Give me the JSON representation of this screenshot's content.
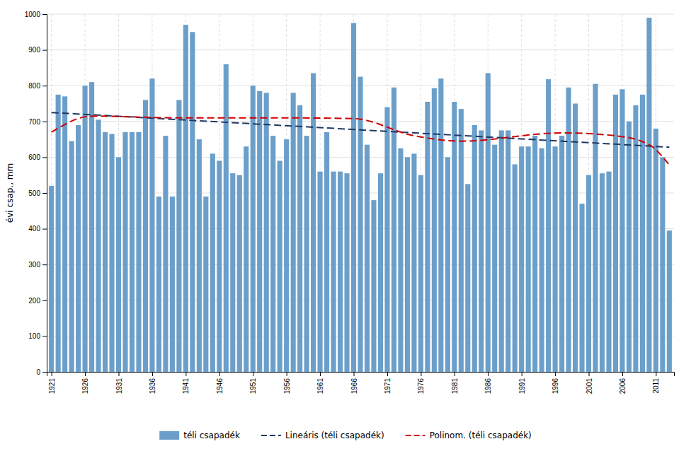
{
  "chart_data": {
    "type": "bar",
    "ylabel": "évi csap., mm",
    "x": [
      1921,
      1922,
      1923,
      1924,
      1925,
      1926,
      1927,
      1928,
      1929,
      1930,
      1931,
      1932,
      1933,
      1934,
      1935,
      1936,
      1937,
      1938,
      1939,
      1940,
      1941,
      1942,
      1943,
      1944,
      1945,
      1946,
      1947,
      1948,
      1949,
      1950,
      1951,
      1952,
      1953,
      1954,
      1955,
      1956,
      1957,
      1958,
      1959,
      1960,
      1961,
      1962,
      1963,
      1964,
      1965,
      1966,
      1967,
      1968,
      1969,
      1970,
      1971,
      1972,
      1973,
      1974,
      1975,
      1976,
      1977,
      1978,
      1979,
      1980,
      1981,
      1982,
      1983,
      1984,
      1985,
      1986,
      1987,
      1988,
      1989,
      1990,
      1991,
      1992,
      1993,
      1994,
      1995,
      1996,
      1997,
      1998,
      1999,
      2000,
      2001,
      2002,
      2003,
      2004,
      2005,
      2006,
      2007,
      2008,
      2009,
      2010,
      2011,
      2012,
      2013
    ],
    "series": [
      {
        "name": "téli csapadék",
        "type": "bar",
        "color": "#6b9fca",
        "values": [
          520,
          775,
          770,
          645,
          690,
          800,
          810,
          705,
          670,
          665,
          600,
          670,
          670,
          670,
          760,
          820,
          490,
          660,
          490,
          760,
          970,
          950,
          650,
          490,
          610,
          590,
          860,
          555,
          550,
          630,
          800,
          785,
          780,
          660,
          590,
          650,
          780,
          745,
          660,
          835,
          560,
          670,
          560,
          560,
          555,
          975,
          825,
          635,
          480,
          555,
          740,
          795,
          625,
          600,
          610,
          550,
          755,
          793,
          820,
          600,
          755,
          735,
          525,
          690,
          675,
          835,
          635,
          675,
          675,
          580,
          630,
          630,
          660,
          625,
          818,
          630,
          660,
          795,
          750,
          470,
          550,
          805,
          555,
          560,
          775,
          790,
          700,
          745,
          775,
          990,
          680,
          600,
          395
        ]
      },
      {
        "name": "Lineáris (téli csapadék)",
        "type": "line",
        "color": "#1f3864",
        "line_style": "dashed",
        "x": [
          1921,
          2013
        ],
        "values": [
          725,
          628
        ]
      },
      {
        "name": "Polinom. (téli csapadék)",
        "type": "line",
        "color": "#cc0000",
        "line_style": "dashed",
        "x": [
          1921,
          1927,
          1940,
          1955,
          1966,
          1975,
          1982,
          1997,
          2005,
          2010,
          2013
        ],
        "values": [
          670,
          715,
          710,
          710,
          708,
          660,
          645,
          668,
          660,
          635,
          578
        ]
      }
    ],
    "xlim": [
      1920.3,
      2013.7
    ],
    "xticks": [
      1921,
      1926,
      1931,
      1936,
      1941,
      1946,
      1951,
      1956,
      1961,
      1966,
      1971,
      1976,
      1981,
      1986,
      1991,
      1996,
      2001,
      2006,
      2011
    ],
    "ylim": [
      0,
      1000
    ],
    "yticks": [
      0,
      100,
      200,
      300,
      400,
      500,
      600,
      700,
      800,
      900,
      1000
    ],
    "grid": true,
    "legend": "bottom"
  }
}
